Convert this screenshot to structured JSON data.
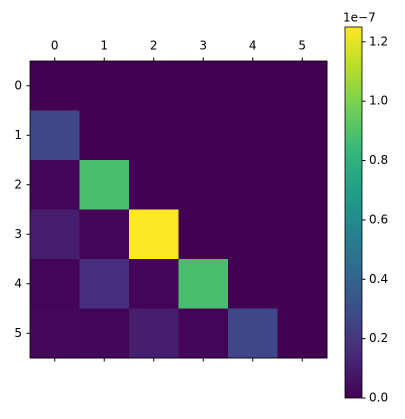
{
  "chart_data": {
    "type": "heatmap",
    "x": [
      0,
      1,
      2,
      3,
      4,
      5
    ],
    "y": [
      0,
      1,
      2,
      3,
      4,
      5
    ],
    "values": [
      [
        0,
        0,
        0,
        0,
        0,
        0
      ],
      [
        0.27,
        0,
        0,
        0,
        0,
        0
      ],
      [
        0.01,
        0.88,
        0,
        0,
        0,
        0
      ],
      [
        0.1,
        0.01,
        1.25,
        0,
        0,
        0
      ],
      [
        0.01,
        0.17,
        0.01,
        0.88,
        0,
        0
      ],
      [
        0.02,
        0.01,
        0.1,
        0.01,
        0.27,
        0
      ]
    ],
    "colormap": "viridis",
    "clim": [
      0,
      1.25
    ],
    "colorbar_ticks": [
      {
        "value": 0,
        "label": "0.0"
      },
      {
        "value": 0.2,
        "label": "0.2"
      },
      {
        "value": 0.4,
        "label": "0.4"
      },
      {
        "value": 0.6,
        "label": "0.6"
      },
      {
        "value": 0.8,
        "label": "0.8"
      },
      {
        "value": 1,
        "label": "1.0"
      },
      {
        "value": 1.2,
        "label": "1.2"
      }
    ],
    "colorbar_offset": "1e−7"
  }
}
